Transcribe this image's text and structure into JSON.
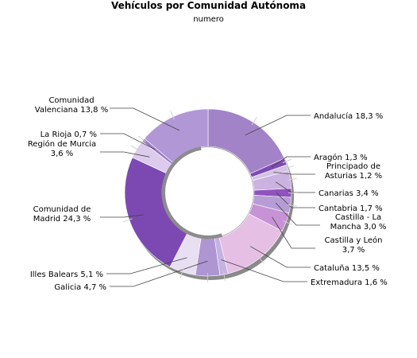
{
  "chart_data": {
    "type": "pie",
    "donut": true,
    "title": "Vehículos por Comunidad Autónoma",
    "subtitle": "numero",
    "series_name": "",
    "slices": [
      {
        "label_lines": [
          "Andalucía 18,3 %"
        ],
        "value": 18.3,
        "color": "#a283c8"
      },
      {
        "label_lines": [
          "Aragón 1,3 %"
        ],
        "value": 1.3,
        "color": "#7e4bb5"
      },
      {
        "label_lines": [
          "Principado de",
          "Asturias 1,2 %"
        ],
        "value": 1.2,
        "color": "#d4c3e5"
      },
      {
        "label_lines": [
          "Canarias 3,4 %"
        ],
        "value": 3.4,
        "color": "#cbb2e0"
      },
      {
        "label_lines": [
          "Cantabria 1,7 %"
        ],
        "value": 1.7,
        "color": "#8f52be"
      },
      {
        "label_lines": [
          "Castilla - La",
          "Mancha 3,0 %"
        ],
        "value": 3.0,
        "color": "#b79dd6"
      },
      {
        "label_lines": [
          "Castilla y León",
          "3,7 %"
        ],
        "value": 3.7,
        "color": "#c892d6"
      },
      {
        "label_lines": [
          "Cataluña 13,5 %"
        ],
        "value": 13.5,
        "color": "#e6bfe5"
      },
      {
        "label_lines": [
          "Extremadura 1,6 %"
        ],
        "value": 1.6,
        "color": "#c6b2e0"
      },
      {
        "label_lines": [
          "Galicia 4,7 %"
        ],
        "value": 4.7,
        "color": "#ad96d2"
      },
      {
        "label_lines": [
          "Illes Balears 5,1 %"
        ],
        "value": 5.1,
        "color": "#e8dff2"
      },
      {
        "label_lines": [
          "Comunidad de",
          "Madrid 24,3 %"
        ],
        "value": 24.3,
        "color": "#7c49b2"
      },
      {
        "label_lines": [
          "Región de Murcia",
          "3,6 %"
        ],
        "value": 3.6,
        "color": "#dccbec"
      },
      {
        "label_lines": [
          "La Rioja 0,7 %"
        ],
        "value": 0.7,
        "color": "#9b7dc2"
      },
      {
        "label_lines": [
          "Comunidad",
          "Valenciana 13,8 %"
        ],
        "value": 13.8,
        "color": "#b297d6"
      }
    ]
  }
}
